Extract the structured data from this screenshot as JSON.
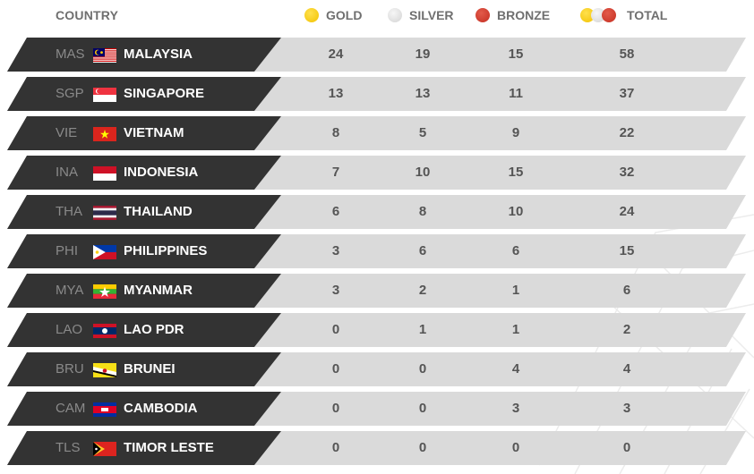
{
  "header": {
    "country": "COUNTRY",
    "gold": "GOLD",
    "silver": "SILVER",
    "bronze": "BRONZE",
    "total": "TOTAL"
  },
  "colors": {
    "dark_band": "#333333",
    "light_band": "#dadada",
    "gold": "#f2c200",
    "silver": "#d3d3d3",
    "bronze": "#c52f22"
  },
  "rows": [
    {
      "code": "MAS",
      "country": "MALAYSIA",
      "gold": "24",
      "silver": "19",
      "bronze": "15",
      "total": "58",
      "flag": "malaysia-flag-icon"
    },
    {
      "code": "SGP",
      "country": "SINGAPORE",
      "gold": "13",
      "silver": "13",
      "bronze": "11",
      "total": "37",
      "flag": "singapore-flag-icon"
    },
    {
      "code": "VIE",
      "country": "VIETNAM",
      "gold": "8",
      "silver": "5",
      "bronze": "9",
      "total": "22",
      "flag": "vietnam-flag-icon"
    },
    {
      "code": "INA",
      "country": "INDONESIA",
      "gold": "7",
      "silver": "10",
      "bronze": "15",
      "total": "32",
      "flag": "indonesia-flag-icon"
    },
    {
      "code": "THA",
      "country": "THAILAND",
      "gold": "6",
      "silver": "8",
      "bronze": "10",
      "total": "24",
      "flag": "thailand-flag-icon"
    },
    {
      "code": "PHI",
      "country": "PHILIPPINES",
      "gold": "3",
      "silver": "6",
      "bronze": "6",
      "total": "15",
      "flag": "philippines-flag-icon"
    },
    {
      "code": "MYA",
      "country": "MYANMAR",
      "gold": "3",
      "silver": "2",
      "bronze": "1",
      "total": "6",
      "flag": "myanmar-flag-icon"
    },
    {
      "code": "LAO",
      "country": "LAO PDR",
      "gold": "0",
      "silver": "1",
      "bronze": "1",
      "total": "2",
      "flag": "laos-flag-icon"
    },
    {
      "code": "BRU",
      "country": "BRUNEI",
      "gold": "0",
      "silver": "0",
      "bronze": "4",
      "total": "4",
      "flag": "brunei-flag-icon"
    },
    {
      "code": "CAM",
      "country": "CAMBODIA",
      "gold": "0",
      "silver": "0",
      "bronze": "3",
      "total": "3",
      "flag": "cambodia-flag-icon"
    },
    {
      "code": "TLS",
      "country": "TIMOR LESTE",
      "gold": "0",
      "silver": "0",
      "bronze": "0",
      "total": "0",
      "flag": "timor-leste-flag-icon"
    }
  ]
}
